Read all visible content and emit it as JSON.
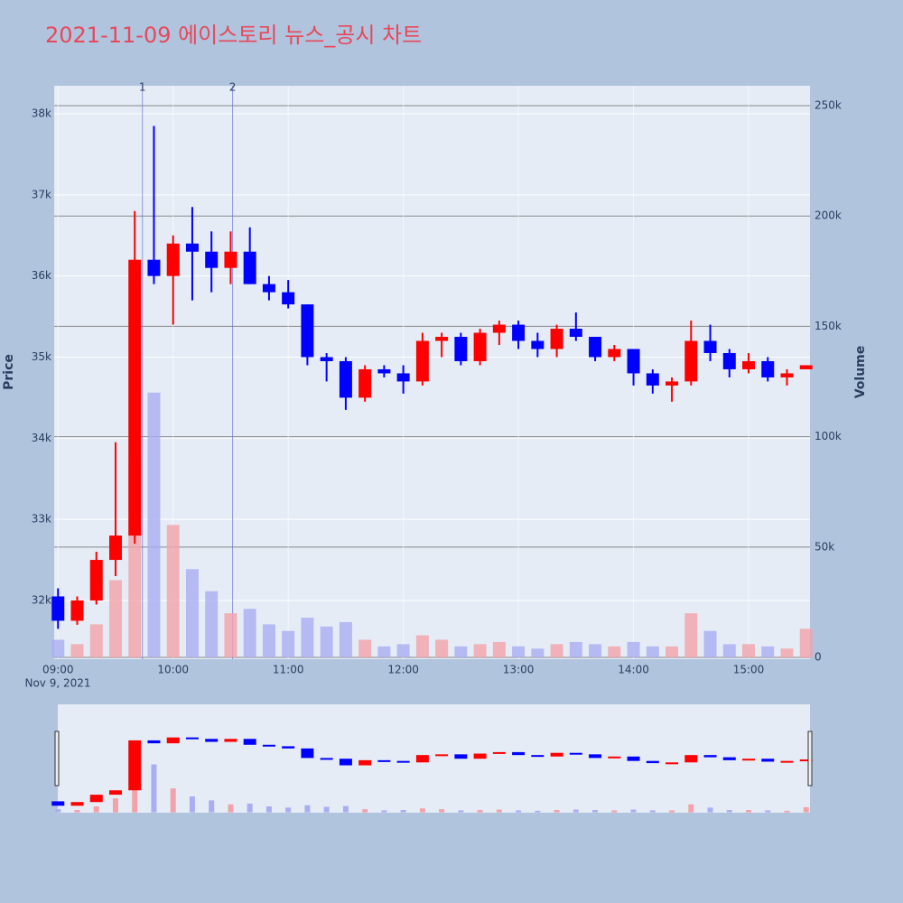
{
  "chart_data": {
    "type": "candlestick",
    "title": "2021-11-09 에이스토리 뉴스_공시 차트",
    "title_color": "#e8485a",
    "ylabel": "Price",
    "y2label": "Volume",
    "x": [
      "09:00",
      "09:10",
      "09:20",
      "09:30",
      "09:40",
      "09:50",
      "10:00",
      "10:10",
      "10:20",
      "10:30",
      "10:40",
      "10:50",
      "11:00",
      "11:10",
      "11:20",
      "11:30",
      "11:40",
      "11:50",
      "12:00",
      "12:10",
      "12:20",
      "12:30",
      "12:40",
      "12:50",
      "13:00",
      "13:10",
      "13:20",
      "13:30",
      "13:40",
      "13:50",
      "14:00",
      "14:10",
      "14:20",
      "14:30",
      "14:40",
      "14:50",
      "15:00",
      "15:10",
      "15:20",
      "15:30"
    ],
    "open": [
      32050,
      31750,
      32000,
      32500,
      32800,
      36200,
      36000,
      36400,
      36300,
      36100,
      36300,
      35900,
      35800,
      35650,
      35000,
      34950,
      34500,
      34850,
      34800,
      34700,
      35200,
      35250,
      34950,
      35300,
      35400,
      35200,
      35100,
      35350,
      35250,
      35000,
      35100,
      34800,
      34650,
      34700,
      35200,
      35050,
      34850,
      34950,
      34750,
      34850
    ],
    "high": [
      32150,
      32050,
      32600,
      33950,
      36800,
      37850,
      36500,
      36850,
      36550,
      36550,
      36600,
      36000,
      35950,
      35650,
      35050,
      35000,
      34900,
      34900,
      34900,
      35300,
      35300,
      35300,
      35350,
      35450,
      35450,
      35300,
      35400,
      35550,
      35250,
      35150,
      35100,
      34850,
      34750,
      35450,
      35400,
      35100,
      35050,
      35000,
      34850,
      34900
    ],
    "low": [
      31650,
      31700,
      31950,
      32300,
      32700,
      35900,
      35400,
      35700,
      35800,
      35900,
      35900,
      35700,
      35600,
      34900,
      34700,
      34350,
      34450,
      34750,
      34550,
      34650,
      35000,
      34900,
      34900,
      35150,
      35100,
      35000,
      35000,
      35200,
      34950,
      34950,
      34650,
      34550,
      34450,
      34650,
      34950,
      34750,
      34800,
      34700,
      34650,
      34850
    ],
    "close": [
      31750,
      32000,
      32500,
      32800,
      36200,
      36000,
      36400,
      36300,
      36100,
      36300,
      35900,
      35800,
      35650,
      35000,
      34950,
      34500,
      34850,
      34800,
      34700,
      35200,
      35250,
      34950,
      35300,
      35400,
      35200,
      35100,
      35350,
      35250,
      35000,
      35100,
      34800,
      34650,
      34700,
      35200,
      35050,
      34850,
      34950,
      34750,
      34800,
      34900
    ],
    "volume": [
      8000,
      6000,
      15000,
      35000,
      90000,
      120000,
      60000,
      40000,
      30000,
      20000,
      22000,
      15000,
      12000,
      18000,
      14000,
      16000,
      8000,
      5000,
      6000,
      10000,
      8000,
      5000,
      6000,
      7000,
      5000,
      4000,
      6000,
      7000,
      6000,
      5000,
      7000,
      5000,
      5000,
      20000,
      12000,
      6000,
      6000,
      5000,
      4000,
      13000
    ],
    "increasing_color": "#ff0000",
    "decreasing_color": "#0000ff",
    "volume_increasing_color": "#f2a2aa",
    "volume_decreasing_color": "#a9aef2",
    "xlim": [
      "08:58",
      "15:32"
    ],
    "xticks": [
      "09:00",
      "10:00",
      "11:00",
      "12:00",
      "13:00",
      "14:00",
      "15:00"
    ],
    "xtick_sublabel": "Nov 9, 2021",
    "ylim": [
      31276,
      38345
    ],
    "yticks": [
      {
        "value": 32000,
        "label": "32k"
      },
      {
        "value": 33000,
        "label": "33k"
      },
      {
        "value": 34000,
        "label": "34k"
      },
      {
        "value": 35000,
        "label": "35k"
      },
      {
        "value": 36000,
        "label": "36k"
      },
      {
        "value": 37000,
        "label": "37k"
      },
      {
        "value": 38000,
        "label": "38k"
      }
    ],
    "y2lim": [
      -800,
      259000
    ],
    "y2ticks": [
      0,
      {
        "value": 50000,
        "label": "50k"
      },
      {
        "value": 100000,
        "label": "100k"
      },
      {
        "value": 150000,
        "label": "150k"
      },
      {
        "value": 200000,
        "label": "200k"
      },
      {
        "value": 250000,
        "label": "250k"
      }
    ],
    "annotations": [
      {
        "x": "09:44",
        "text": "1"
      },
      {
        "x": "10:31",
        "text": "2"
      }
    ],
    "grid": true,
    "rangeslider": true
  }
}
